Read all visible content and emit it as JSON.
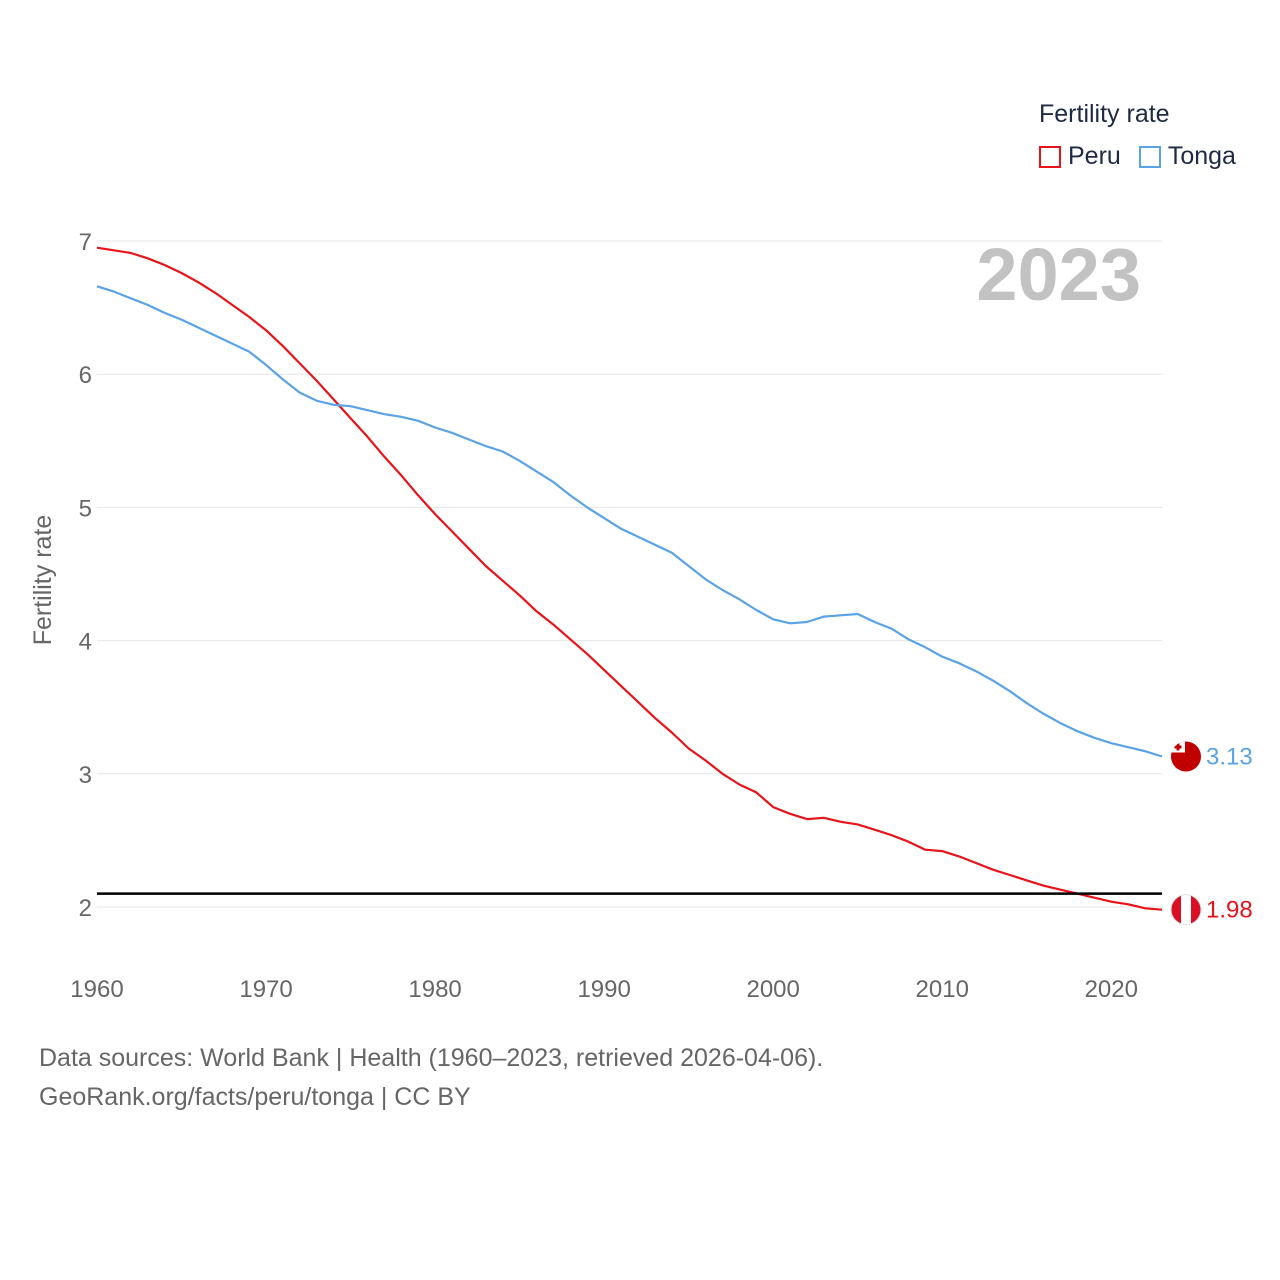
{
  "legend": {
    "title": "Fertility rate",
    "items": [
      {
        "name": "Peru",
        "color": "#e8141a"
      },
      {
        "name": "Tonga",
        "color": "#5aa3e6"
      }
    ]
  },
  "footer": {
    "line1": "Data sources: World Bank | Health (1960–2023, retrieved 2026-04-06).",
    "line2": "GeoRank.org/facts/peru/tonga | CC BY"
  },
  "chart_data": {
    "type": "line",
    "title": "Fertility rate",
    "ylabel": "Fertility rate",
    "xlabel": "",
    "big_year": "2023",
    "xlim": [
      1960,
      2023
    ],
    "ylim": [
      1.5,
      7.0
    ],
    "x_ticks": [
      1960,
      1970,
      1980,
      1990,
      2000,
      2010,
      2020
    ],
    "y_ticks": [
      2,
      3,
      4,
      5,
      6,
      7
    ],
    "reference_line": {
      "y": 2.1,
      "color": "#000000"
    },
    "x": [
      1960,
      1961,
      1962,
      1963,
      1964,
      1965,
      1966,
      1967,
      1968,
      1969,
      1970,
      1971,
      1972,
      1973,
      1974,
      1975,
      1976,
      1977,
      1978,
      1979,
      1980,
      1981,
      1982,
      1983,
      1984,
      1985,
      1986,
      1987,
      1988,
      1989,
      1990,
      1991,
      1992,
      1993,
      1994,
      1995,
      1996,
      1997,
      1998,
      1999,
      2000,
      2001,
      2002,
      2003,
      2004,
      2005,
      2006,
      2007,
      2008,
      2009,
      2010,
      2011,
      2012,
      2013,
      2014,
      2015,
      2016,
      2017,
      2018,
      2019,
      2020,
      2021,
      2022,
      2023
    ],
    "series": [
      {
        "name": "Peru",
        "color": "#e8141a",
        "end_label": "1.98",
        "values": [
          6.95,
          6.93,
          6.91,
          6.87,
          6.82,
          6.76,
          6.69,
          6.61,
          6.52,
          6.43,
          6.33,
          6.21,
          6.08,
          5.95,
          5.81,
          5.67,
          5.53,
          5.38,
          5.24,
          5.09,
          4.95,
          4.82,
          4.69,
          4.56,
          4.45,
          4.34,
          4.22,
          4.12,
          4.01,
          3.9,
          3.78,
          3.66,
          3.54,
          3.42,
          3.31,
          3.19,
          3.1,
          3.0,
          2.92,
          2.86,
          2.75,
          2.7,
          2.66,
          2.67,
          2.64,
          2.62,
          2.58,
          2.54,
          2.49,
          2.43,
          2.42,
          2.38,
          2.33,
          2.28,
          2.24,
          2.2,
          2.16,
          2.13,
          2.1,
          2.07,
          2.04,
          2.02,
          1.99,
          1.98
        ]
      },
      {
        "name": "Tonga",
        "color": "#5aa3e6",
        "end_label": "3.13",
        "values": [
          6.66,
          6.62,
          6.57,
          6.52,
          6.46,
          6.41,
          6.35,
          6.29,
          6.23,
          6.17,
          6.07,
          5.96,
          5.86,
          5.8,
          5.77,
          5.76,
          5.73,
          5.7,
          5.68,
          5.65,
          5.6,
          5.56,
          5.51,
          5.46,
          5.42,
          5.35,
          5.27,
          5.19,
          5.09,
          5.0,
          4.92,
          4.84,
          4.78,
          4.72,
          4.66,
          4.56,
          4.46,
          4.38,
          4.31,
          4.23,
          4.16,
          4.13,
          4.14,
          4.18,
          4.19,
          4.2,
          4.14,
          4.09,
          4.01,
          3.95,
          3.88,
          3.83,
          3.77,
          3.7,
          3.62,
          3.53,
          3.45,
          3.38,
          3.32,
          3.27,
          3.23,
          3.2,
          3.17,
          3.13
        ]
      }
    ]
  }
}
